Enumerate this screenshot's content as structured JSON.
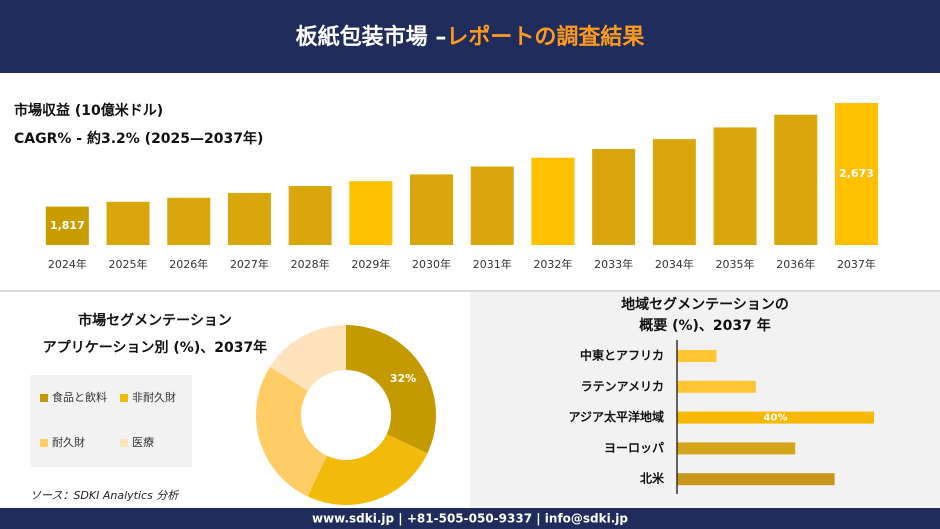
{
  "header": {
    "title_main": "板紙包装市場 –",
    "title_accent": "レポートの調査結果"
  },
  "chart_data": [
    {
      "type": "bar",
      "title": "市場収益 (10億米ドル)",
      "subtitle": "CAGR% - 約3.2% (2025—2037年)",
      "categories": [
        "2024年",
        "2025年",
        "2026年",
        "2027年",
        "2028年",
        "2029年",
        "2030年",
        "2031年",
        "2032年",
        "2033年",
        "2034年",
        "2035年",
        "2036年",
        "2037年"
      ],
      "values": [
        1817,
        1857,
        1890,
        1930,
        1987,
        2027,
        2083,
        2148,
        2221,
        2293,
        2374,
        2471,
        2576,
        2673
      ],
      "value_labels": [
        "1,817",
        null,
        null,
        null,
        null,
        null,
        null,
        null,
        null,
        null,
        null,
        null,
        null,
        "2,673"
      ],
      "colors": [
        "#c99c00",
        "#d9a70c",
        "#d9a70c",
        "#d9a70c",
        "#d9a70c",
        "#ffc000",
        "#d9a70c",
        "#d9a70c",
        "#ffc000",
        "#d9a70c",
        "#d9a70c",
        "#d9a70c",
        "#d9a70c",
        "#ffc000"
      ],
      "ylim": [
        1500,
        2700
      ]
    },
    {
      "type": "pie",
      "title": "市場セグメンテーション",
      "subtitle": "アプリケーション別 (%)、2037年",
      "categories": [
        "食品と飲料",
        "非耐久財",
        "耐久財",
        "医療"
      ],
      "values": [
        32,
        25,
        27,
        16
      ],
      "value_labels": [
        "32%",
        null,
        null,
        null
      ],
      "colors": [
        "#c49a00",
        "#f2bb0a",
        "#ffcc66",
        "#ffe3bd"
      ]
    },
    {
      "type": "hbar",
      "title": "地域セグメンテーションの",
      "subtitle": "概要 (%)、2037 年",
      "categories": [
        "中東とアフリカ",
        "ラテンアメリカ",
        "アジア太平洋地域",
        "ヨーロッパ",
        "北米"
      ],
      "values": [
        8,
        16,
        40,
        24,
        32
      ],
      "value_labels": [
        null,
        null,
        "40%",
        null,
        null
      ],
      "colors": [
        "#ffc532",
        "#ffc532",
        "#f7b900",
        "#d4a41a",
        "#c8961a"
      ],
      "xlim": [
        0,
        40
      ]
    }
  ],
  "source": "ソース：SDKI Analytics 分析",
  "footer": "www.sdki.jp | +81-505-050-9337 | info@sdki.jp"
}
